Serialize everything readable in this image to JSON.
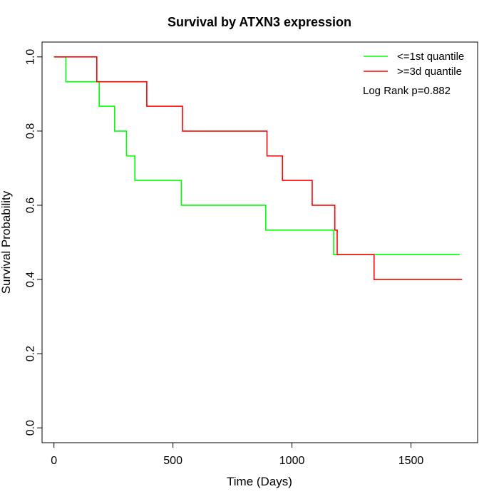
{
  "chart_data": {
    "type": "line",
    "title": "Survival by ATXN3 expression",
    "xlabel": "Time (Days)",
    "ylabel": "Survival Probability",
    "xlim": [
      -50,
      1780
    ],
    "ylim": [
      -0.04,
      1.04
    ],
    "xticks": [
      0,
      500,
      1000,
      1500
    ],
    "yticks": [
      0.0,
      0.2,
      0.4,
      0.6,
      0.8,
      1.0
    ],
    "xtick_labels": [
      "0",
      "500",
      "1000",
      "1500"
    ],
    "ytick_labels": [
      "0.0",
      "0.2",
      "0.4",
      "0.6",
      "0.8",
      "1.0"
    ],
    "legend_position": "top-right",
    "annotation": "Log Rank p=0.882",
    "series": [
      {
        "name": "<=1st quantile",
        "color": "#00ff00",
        "step": true,
        "x": [
          0,
          50,
          190,
          255,
          305,
          340,
          535,
          890,
          1175,
          1705
        ],
        "y": [
          1.0,
          0.933,
          0.867,
          0.8,
          0.733,
          0.667,
          0.6,
          0.533,
          0.467,
          0.467
        ]
      },
      {
        "name": ">=3d quantile",
        "color": "#ff0000",
        "step": true,
        "x": [
          0,
          180,
          390,
          540,
          895,
          960,
          1085,
          1180,
          1190,
          1345,
          1715
        ],
        "y": [
          1.0,
          0.933,
          0.867,
          0.8,
          0.733,
          0.667,
          0.6,
          0.533,
          0.467,
          0.4,
          0.4
        ]
      }
    ]
  }
}
